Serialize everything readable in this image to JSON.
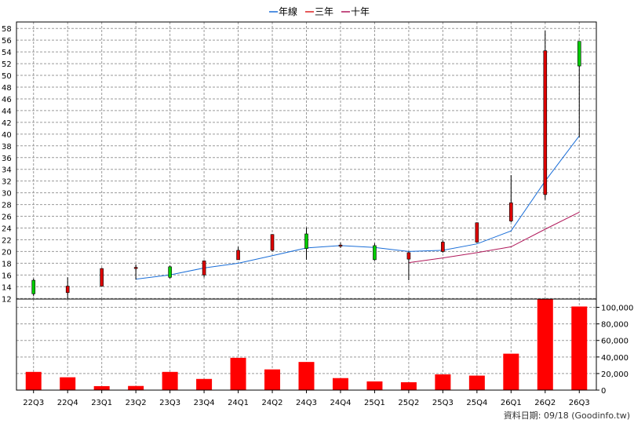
{
  "chart_data": [
    {
      "type": "candlestick",
      "categories": [
        "22Q3",
        "22Q4",
        "23Q1",
        "23Q2",
        "23Q3",
        "23Q4",
        "24Q1",
        "24Q2",
        "24Q3",
        "24Q4",
        "25Q1",
        "25Q2",
        "25Q3",
        "25Q4",
        "26Q1",
        "26Q2",
        "26Q3"
      ],
      "ohlc": [
        {
          "open": 12.8,
          "high": 15.4,
          "low": 12.4,
          "close": 15.1
        },
        {
          "open": 14.1,
          "high": 15.6,
          "low": 12.0,
          "close": 13.0
        },
        {
          "open": 17.1,
          "high": 17.2,
          "low": 14.1,
          "close": 14.1
        },
        {
          "open": 17.3,
          "high": 17.8,
          "low": 15.2,
          "close": 17.1
        },
        {
          "open": 15.6,
          "high": 17.6,
          "low": 15.4,
          "close": 17.4
        },
        {
          "open": 18.4,
          "high": 18.5,
          "low": 15.6,
          "close": 16.0
        },
        {
          "open": 20.2,
          "high": 20.8,
          "low": 18.6,
          "close": 18.6
        },
        {
          "open": 22.9,
          "high": 22.9,
          "low": 20.0,
          "close": 20.2
        },
        {
          "open": 20.5,
          "high": 24.1,
          "low": 18.6,
          "close": 23.0
        },
        {
          "open": 21.1,
          "high": 21.5,
          "low": 20.6,
          "close": 20.9
        },
        {
          "open": 18.6,
          "high": 21.4,
          "low": 18.4,
          "close": 21.0
        },
        {
          "open": 19.8,
          "high": 20.0,
          "low": 15.1,
          "close": 18.7
        },
        {
          "open": 21.6,
          "high": 21.9,
          "low": 19.8,
          "close": 20.0
        },
        {
          "open": 24.9,
          "high": 24.9,
          "low": 21.5,
          "close": 21.6
        },
        {
          "open": 28.3,
          "high": 33.0,
          "low": 25.0,
          "close": 25.2
        },
        {
          "open": 54.2,
          "high": 57.6,
          "low": 28.8,
          "close": 29.7
        },
        {
          "open": 51.6,
          "high": 55.8,
          "low": 39.5,
          "close": 55.8
        }
      ],
      "up_color": "#00cc00",
      "down_color": "#dd0000",
      "legend_position": "top-center",
      "series": [
        {
          "name": "年線",
          "color": "#1a6ed8",
          "values": [
            null,
            null,
            null,
            15.3,
            16.0,
            17.2,
            18.0,
            19.3,
            20.6,
            21.0,
            20.7,
            20.0,
            20.2,
            21.3,
            23.5,
            32.0,
            39.7
          ]
        },
        {
          "name": "三年",
          "color": "#dd2222",
          "values": [
            null,
            null,
            null,
            null,
            null,
            null,
            null,
            null,
            null,
            null,
            null,
            null,
            null,
            null,
            null,
            null,
            null
          ]
        },
        {
          "name": "十年",
          "color": "#b0185a",
          "values": [
            null,
            null,
            null,
            null,
            null,
            null,
            null,
            null,
            null,
            null,
            null,
            18.1,
            18.9,
            19.8,
            20.8,
            23.8,
            26.7
          ]
        }
      ],
      "y_ticks": [
        "12",
        "14",
        "16",
        "18",
        "20",
        "22",
        "24",
        "26",
        "28",
        "30",
        "32",
        "34",
        "36",
        "38",
        "40",
        "42",
        "44",
        "46",
        "48",
        "50",
        "52",
        "54",
        "56",
        "58"
      ],
      "ylim": [
        11.9,
        59.1
      ],
      "grid": true
    },
    {
      "type": "bar",
      "categories": [
        "22Q3",
        "22Q4",
        "23Q1",
        "23Q2",
        "23Q3",
        "23Q4",
        "24Q1",
        "24Q2",
        "24Q3",
        "24Q4",
        "25Q1",
        "25Q2",
        "25Q3",
        "25Q4",
        "26Q1",
        "26Q2",
        "26Q3"
      ],
      "values": [
        22000,
        15500,
        4800,
        5000,
        22000,
        13500,
        39000,
        25000,
        34000,
        14500,
        10500,
        9500,
        19000,
        17500,
        44000,
        110000,
        101000
      ],
      "color": "#ff0000",
      "y_ticks": [
        "0",
        "20,000",
        "40,000",
        "60,000",
        "80,000",
        "100,000"
      ],
      "ylim": [
        0,
        110000
      ],
      "grid": true
    }
  ],
  "footer": {
    "source_label": "資料日期: 09/18  (Goodinfo.tw)"
  }
}
